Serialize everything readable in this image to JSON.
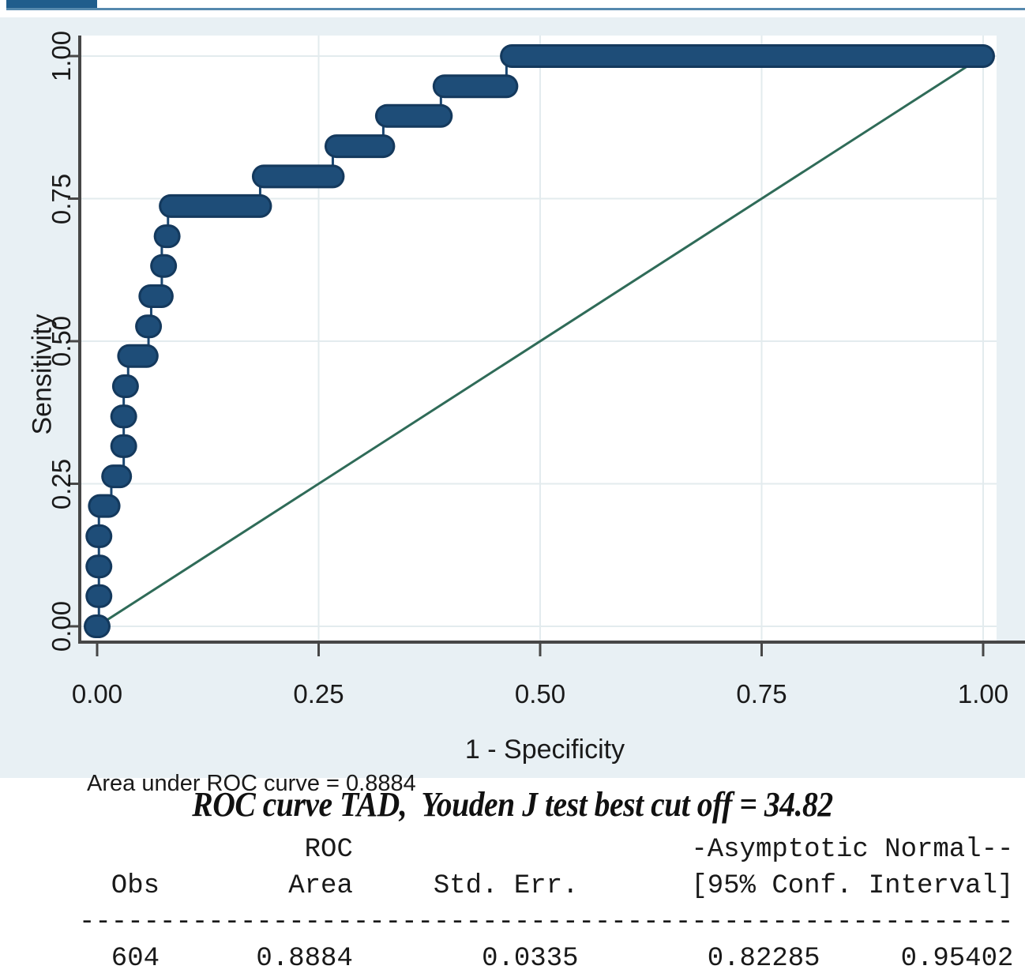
{
  "window": {
    "tab_color": "#205d8c",
    "strip_color": "#5689ae"
  },
  "chart_data": {
    "type": "line",
    "subtype": "roc-step-curve",
    "xlabel": "1 - Specificity",
    "ylabel": "Sensitivity",
    "xlim": [
      0,
      1
    ],
    "ylim": [
      0,
      1
    ],
    "grid": true,
    "x_ticks": [
      "0.00",
      "0.25",
      "0.50",
      "0.75",
      "1.00"
    ],
    "x_tick_vals": [
      0,
      0.25,
      0.5,
      0.75,
      1
    ],
    "y_ticks": [
      "0.00",
      "0.25",
      "0.50",
      "0.75",
      "1.00"
    ],
    "y_tick_vals": [
      0,
      0.25,
      0.5,
      0.75,
      1
    ],
    "annotation": "Area under ROC curve = 0.8884",
    "auc": 0.8884,
    "colors": {
      "figure_bg": "#e8f0f4",
      "plot_bg": "#ffffff",
      "grid": "#e3ebee",
      "axis": "#474747",
      "line": "#1a4670",
      "marker_fill": "#1e4d78",
      "marker_edge": "#14395d",
      "reference": "#2f6b58"
    },
    "reference_line": [
      [
        0,
        0
      ],
      [
        1,
        1
      ]
    ],
    "roc_curve": {
      "steps": [
        [
          0.0,
          0.0
        ],
        [
          0.002,
          0.0
        ],
        [
          0.002,
          0.211
        ],
        [
          0.016,
          0.211
        ],
        [
          0.016,
          0.263
        ],
        [
          0.03,
          0.263
        ],
        [
          0.03,
          0.421
        ],
        [
          0.035,
          0.421
        ],
        [
          0.035,
          0.474
        ],
        [
          0.058,
          0.474
        ],
        [
          0.058,
          0.526
        ],
        [
          0.061,
          0.526
        ],
        [
          0.061,
          0.579
        ],
        [
          0.073,
          0.579
        ],
        [
          0.073,
          0.684
        ],
        [
          0.08,
          0.684
        ],
        [
          0.08,
          0.737
        ],
        [
          0.184,
          0.737
        ],
        [
          0.184,
          0.789
        ],
        [
          0.266,
          0.789
        ],
        [
          0.266,
          0.842
        ],
        [
          0.323,
          0.842
        ],
        [
          0.323,
          0.895
        ],
        [
          0.388,
          0.895
        ],
        [
          0.388,
          0.947
        ],
        [
          0.462,
          0.947
        ],
        [
          0.462,
          1.0
        ],
        [
          1.0,
          1.0
        ]
      ],
      "dots": [
        [
          0.0,
          0.0
        ],
        [
          0.002,
          0.053
        ],
        [
          0.002,
          0.105
        ],
        [
          0.002,
          0.158
        ],
        [
          0.03,
          0.316
        ],
        [
          0.03,
          0.368
        ],
        [
          0.032,
          0.421
        ],
        [
          0.058,
          0.526
        ],
        [
          0.075,
          0.632
        ],
        [
          0.079,
          0.684
        ]
      ],
      "runs": [
        [
          0.003,
          0.013,
          0.211
        ],
        [
          0.018,
          0.026,
          0.263
        ],
        [
          0.036,
          0.056,
          0.474
        ],
        [
          0.06,
          0.073,
          0.579
        ],
        [
          0.083,
          0.184,
          0.737
        ],
        [
          0.188,
          0.266,
          0.789
        ],
        [
          0.27,
          0.323,
          0.842
        ],
        [
          0.327,
          0.388,
          0.895
        ],
        [
          0.392,
          0.462,
          0.947
        ],
        [
          0.468,
          1.0,
          1.0
        ]
      ]
    },
    "stats": {
      "obs": 604,
      "roc_area": 0.8884,
      "std_err": 0.0335,
      "ci_low": 0.82285,
      "ci_high": 0.95402
    }
  },
  "caption": {
    "text": "ROC curve TAD,  Youden J test best cut off = 34.82"
  },
  "table": {
    "header1": "              ROC                     -Asymptotic Normal--",
    "header2": "  Obs        Area     Std. Err.       [95% Conf. Interval]",
    "separator": "----------------------------------------------------------",
    "row": "  604      0.8884        0.0335        0.82285     0.95402"
  }
}
